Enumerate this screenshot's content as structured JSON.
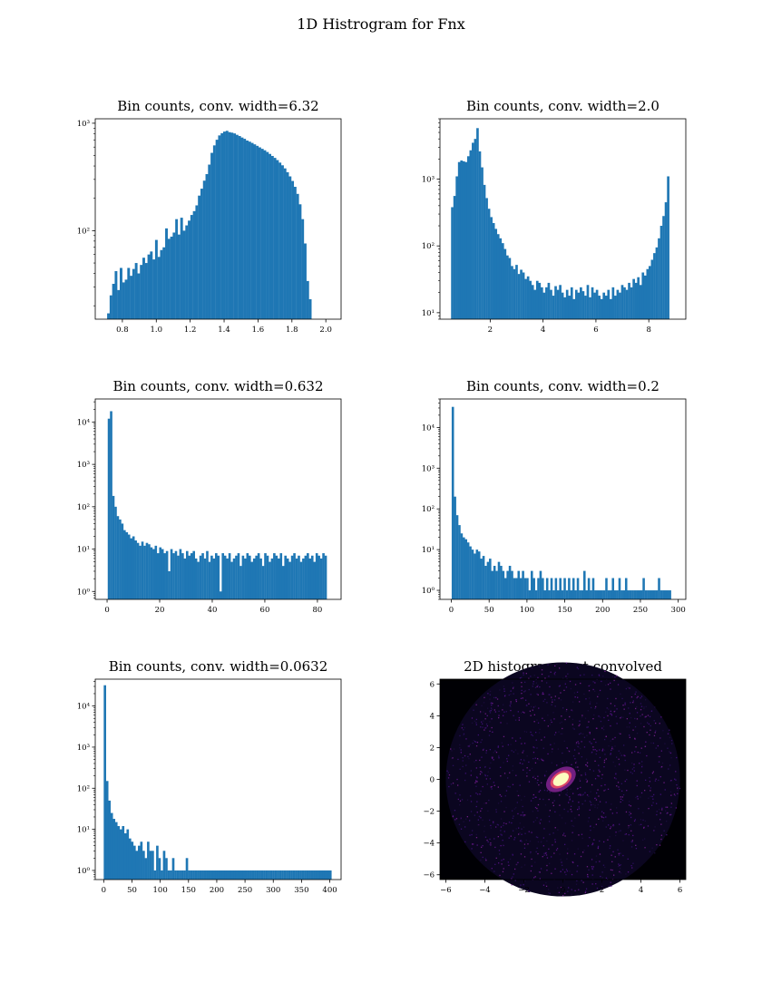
{
  "figure": {
    "title": "1D Histrogram for Fnx",
    "bar_color": "#1f77b4"
  },
  "chart_data": [
    {
      "type": "bar",
      "title": "Bin counts, conv. width=6.32",
      "scale": "log",
      "xlim": [
        0.64,
        2.09
      ],
      "ylim": [
        15,
        1100
      ],
      "xticks": [
        0.8,
        1.0,
        1.2,
        1.4,
        1.6,
        1.8,
        2.0
      ],
      "xtick_labels": [
        "0.8",
        "1.0",
        "1.2",
        "1.4",
        "1.6",
        "1.8",
        "2.0"
      ],
      "yticks": [
        100,
        1000
      ],
      "ytick_labels": [
        "10²",
        "10³"
      ],
      "bin_start": 0.71,
      "bin_width": 0.01488,
      "values": [
        17,
        25,
        32,
        42,
        28,
        45,
        33,
        35,
        45,
        38,
        44,
        50,
        40,
        48,
        56,
        50,
        60,
        64,
        54,
        82,
        57,
        66,
        70,
        105,
        84,
        88,
        96,
        128,
        92,
        132,
        100,
        112,
        124,
        140,
        152,
        172,
        212,
        246,
        292,
        336,
        412,
        530,
        622,
        702,
        770,
        808,
        836,
        850,
        826,
        817,
        804,
        780,
        760,
        736,
        716,
        690,
        674,
        656,
        636,
        616,
        596,
        578,
        560,
        540,
        518,
        496,
        476,
        454,
        430,
        406,
        380,
        350,
        320,
        290,
        256,
        220,
        176,
        128,
        76,
        34,
        23
      ]
    },
    {
      "type": "bar",
      "title": "Bin counts, conv. width=2.0",
      "scale": "log",
      "xlim": [
        0.1,
        9.4
      ],
      "ylim": [
        8,
        8000
      ],
      "xticks": [
        2,
        4,
        6,
        8
      ],
      "xtick_labels": [
        "2",
        "4",
        "6",
        "8"
      ],
      "yticks": [
        10,
        100,
        1000
      ],
      "ytick_labels": [
        "10¹",
        "10²",
        "10³"
      ],
      "bin_start": 0.52,
      "bin_width": 0.0869,
      "values": [
        380,
        560,
        1100,
        1800,
        1900,
        1850,
        1800,
        2200,
        2700,
        3500,
        4000,
        5800,
        2600,
        1500,
        820,
        520,
        360,
        270,
        220,
        180,
        150,
        130,
        110,
        90,
        72,
        66,
        50,
        45,
        52,
        38,
        44,
        40,
        32,
        35,
        30,
        26,
        22,
        30,
        28,
        24,
        20,
        24,
        28,
        22,
        18,
        25,
        22,
        26,
        20,
        17,
        22,
        18,
        24,
        16,
        22,
        20,
        24,
        21,
        18,
        26,
        17,
        24,
        20,
        22,
        18,
        16,
        20,
        18,
        22,
        16,
        24,
        18,
        22,
        20,
        26,
        24,
        22,
        28,
        24,
        32,
        28,
        34,
        26,
        40,
        36,
        45,
        50,
        62,
        78,
        95,
        130,
        200,
        280,
        450,
        1100
      ]
    },
    {
      "type": "bar",
      "title": "Bin counts, conv. width=0.632",
      "scale": "log",
      "xlim": [
        -4.5,
        89
      ],
      "ylim": [
        0.65,
        35000
      ],
      "xticks": [
        0,
        20,
        40,
        60,
        80
      ],
      "xtick_labels": [
        "0",
        "20",
        "40",
        "60",
        "80"
      ],
      "yticks": [
        1,
        10,
        100,
        1000,
        10000
      ],
      "ytick_labels": [
        "10⁰",
        "10¹",
        "10²",
        "10³",
        "10⁴"
      ],
      "bin_start": 0.25,
      "bin_width": 0.85,
      "values": [
        12000,
        18000,
        180,
        100,
        60,
        50,
        40,
        28,
        25,
        22,
        18,
        20,
        16,
        14,
        12,
        15,
        12,
        14,
        13,
        11,
        10,
        12,
        8,
        11,
        10,
        8,
        9,
        3,
        10,
        8,
        9,
        7,
        10,
        8,
        6,
        9,
        7,
        8,
        9,
        6,
        5,
        7,
        8,
        6,
        9,
        5,
        7,
        6,
        8,
        7,
        1,
        8,
        7,
        6,
        8,
        5,
        6,
        7,
        8,
        4,
        7,
        6,
        8,
        7,
        5,
        6,
        7,
        8,
        6,
        4,
        8,
        7,
        5,
        6,
        8,
        7,
        6,
        8,
        4,
        7,
        6,
        5,
        7,
        8,
        6,
        7,
        5,
        6,
        7,
        8,
        6,
        7,
        5,
        8,
        7,
        6,
        8,
        7
      ]
    },
    {
      "type": "bar",
      "title": "Bin counts, conv. width=0.2",
      "scale": "log",
      "xlim": [
        -15,
        310
      ],
      "ylim": [
        0.6,
        50000
      ],
      "xticks": [
        0,
        50,
        100,
        150,
        200,
        250,
        300
      ],
      "xtick_labels": [
        "0",
        "50",
        "100",
        "150",
        "200",
        "250",
        "300"
      ],
      "yticks": [
        1,
        10,
        100,
        1000,
        10000
      ],
      "ytick_labels": [
        "10⁰",
        "10¹",
        "10²",
        "10³",
        "10⁴"
      ],
      "bin_start": 0.5,
      "bin_width": 2.9,
      "values": [
        32000,
        200,
        70,
        40,
        25,
        20,
        18,
        15,
        12,
        10,
        8,
        10,
        9,
        6,
        7,
        4,
        5,
        6,
        3,
        4,
        3,
        5,
        4,
        3,
        2,
        3,
        4,
        3,
        2,
        2,
        3,
        2,
        3,
        2,
        2,
        1,
        3,
        2,
        1,
        2,
        3,
        2,
        1,
        2,
        1,
        2,
        1,
        2,
        1,
        2,
        1,
        2,
        1,
        2,
        1,
        2,
        1,
        2,
        1,
        1,
        3,
        1,
        2,
        1,
        2,
        1,
        1,
        1,
        1,
        1,
        2,
        1,
        1,
        2,
        1,
        1,
        2,
        1,
        1,
        2,
        1,
        1,
        1,
        1,
        1,
        1,
        1,
        2,
        1,
        1,
        1,
        1,
        1,
        1,
        2,
        1,
        1,
        1,
        1,
        1
      ]
    },
    {
      "type": "bar",
      "title": "Bin counts, conv. width=0.0632",
      "scale": "log",
      "xlim": [
        -15,
        420
      ],
      "ylim": [
        0.6,
        45000
      ],
      "xticks": [
        0,
        50,
        100,
        150,
        200,
        250,
        300,
        350,
        400
      ],
      "xtick_labels": [
        "0",
        "50",
        "100",
        "150",
        "200",
        "250",
        "300",
        "350",
        "400"
      ],
      "yticks": [
        1,
        10,
        100,
        1000,
        10000
      ],
      "ytick_labels": [
        "10⁰",
        "10¹",
        "10²",
        "10³",
        "10⁴"
      ],
      "bin_start": 0.0,
      "bin_width": 4.03,
      "values": [
        32000,
        150,
        50,
        25,
        18,
        15,
        12,
        10,
        12,
        8,
        10,
        6,
        5,
        4,
        3,
        4,
        5,
        3,
        2,
        5,
        3,
        3,
        1,
        4,
        2,
        1,
        3,
        2,
        1,
        1,
        2,
        1,
        1,
        1,
        1,
        1,
        2,
        1,
        1,
        1,
        1,
        1,
        1,
        1,
        1,
        1,
        1,
        1,
        1,
        1,
        1,
        1,
        1,
        1,
        1,
        1,
        1,
        1,
        1,
        1,
        1,
        1,
        1,
        1,
        1,
        1,
        1,
        1,
        1,
        1,
        1,
        1,
        1,
        1,
        1,
        1,
        1,
        1,
        1,
        1,
        1,
        1,
        1,
        1,
        1,
        1,
        1,
        1,
        1,
        1,
        1,
        1,
        1,
        1,
        1,
        1,
        1,
        1,
        1,
        1
      ]
    },
    {
      "type": "heatmap",
      "title": "2D histogram, not convolved",
      "xlim": [
        -6.3,
        6.3
      ],
      "ylim": [
        -6.3,
        6.3
      ],
      "xticks": [
        -6,
        -4,
        -2,
        0,
        2,
        4,
        6
      ],
      "xtick_labels": [
        "−6",
        "−4",
        "−2",
        "0",
        "2",
        "4",
        "6"
      ],
      "yticks": [
        -6,
        -4,
        -2,
        0,
        2,
        4,
        6
      ],
      "ytick_labels": [
        "−6",
        "−4",
        "−2",
        "0",
        "2",
        "4",
        "6"
      ],
      "disk_radius": 6.0,
      "hotspot": {
        "x": -0.1,
        "y": 0.0,
        "rx": 0.45,
        "ry": 0.28,
        "angle_deg": 35
      }
    }
  ]
}
